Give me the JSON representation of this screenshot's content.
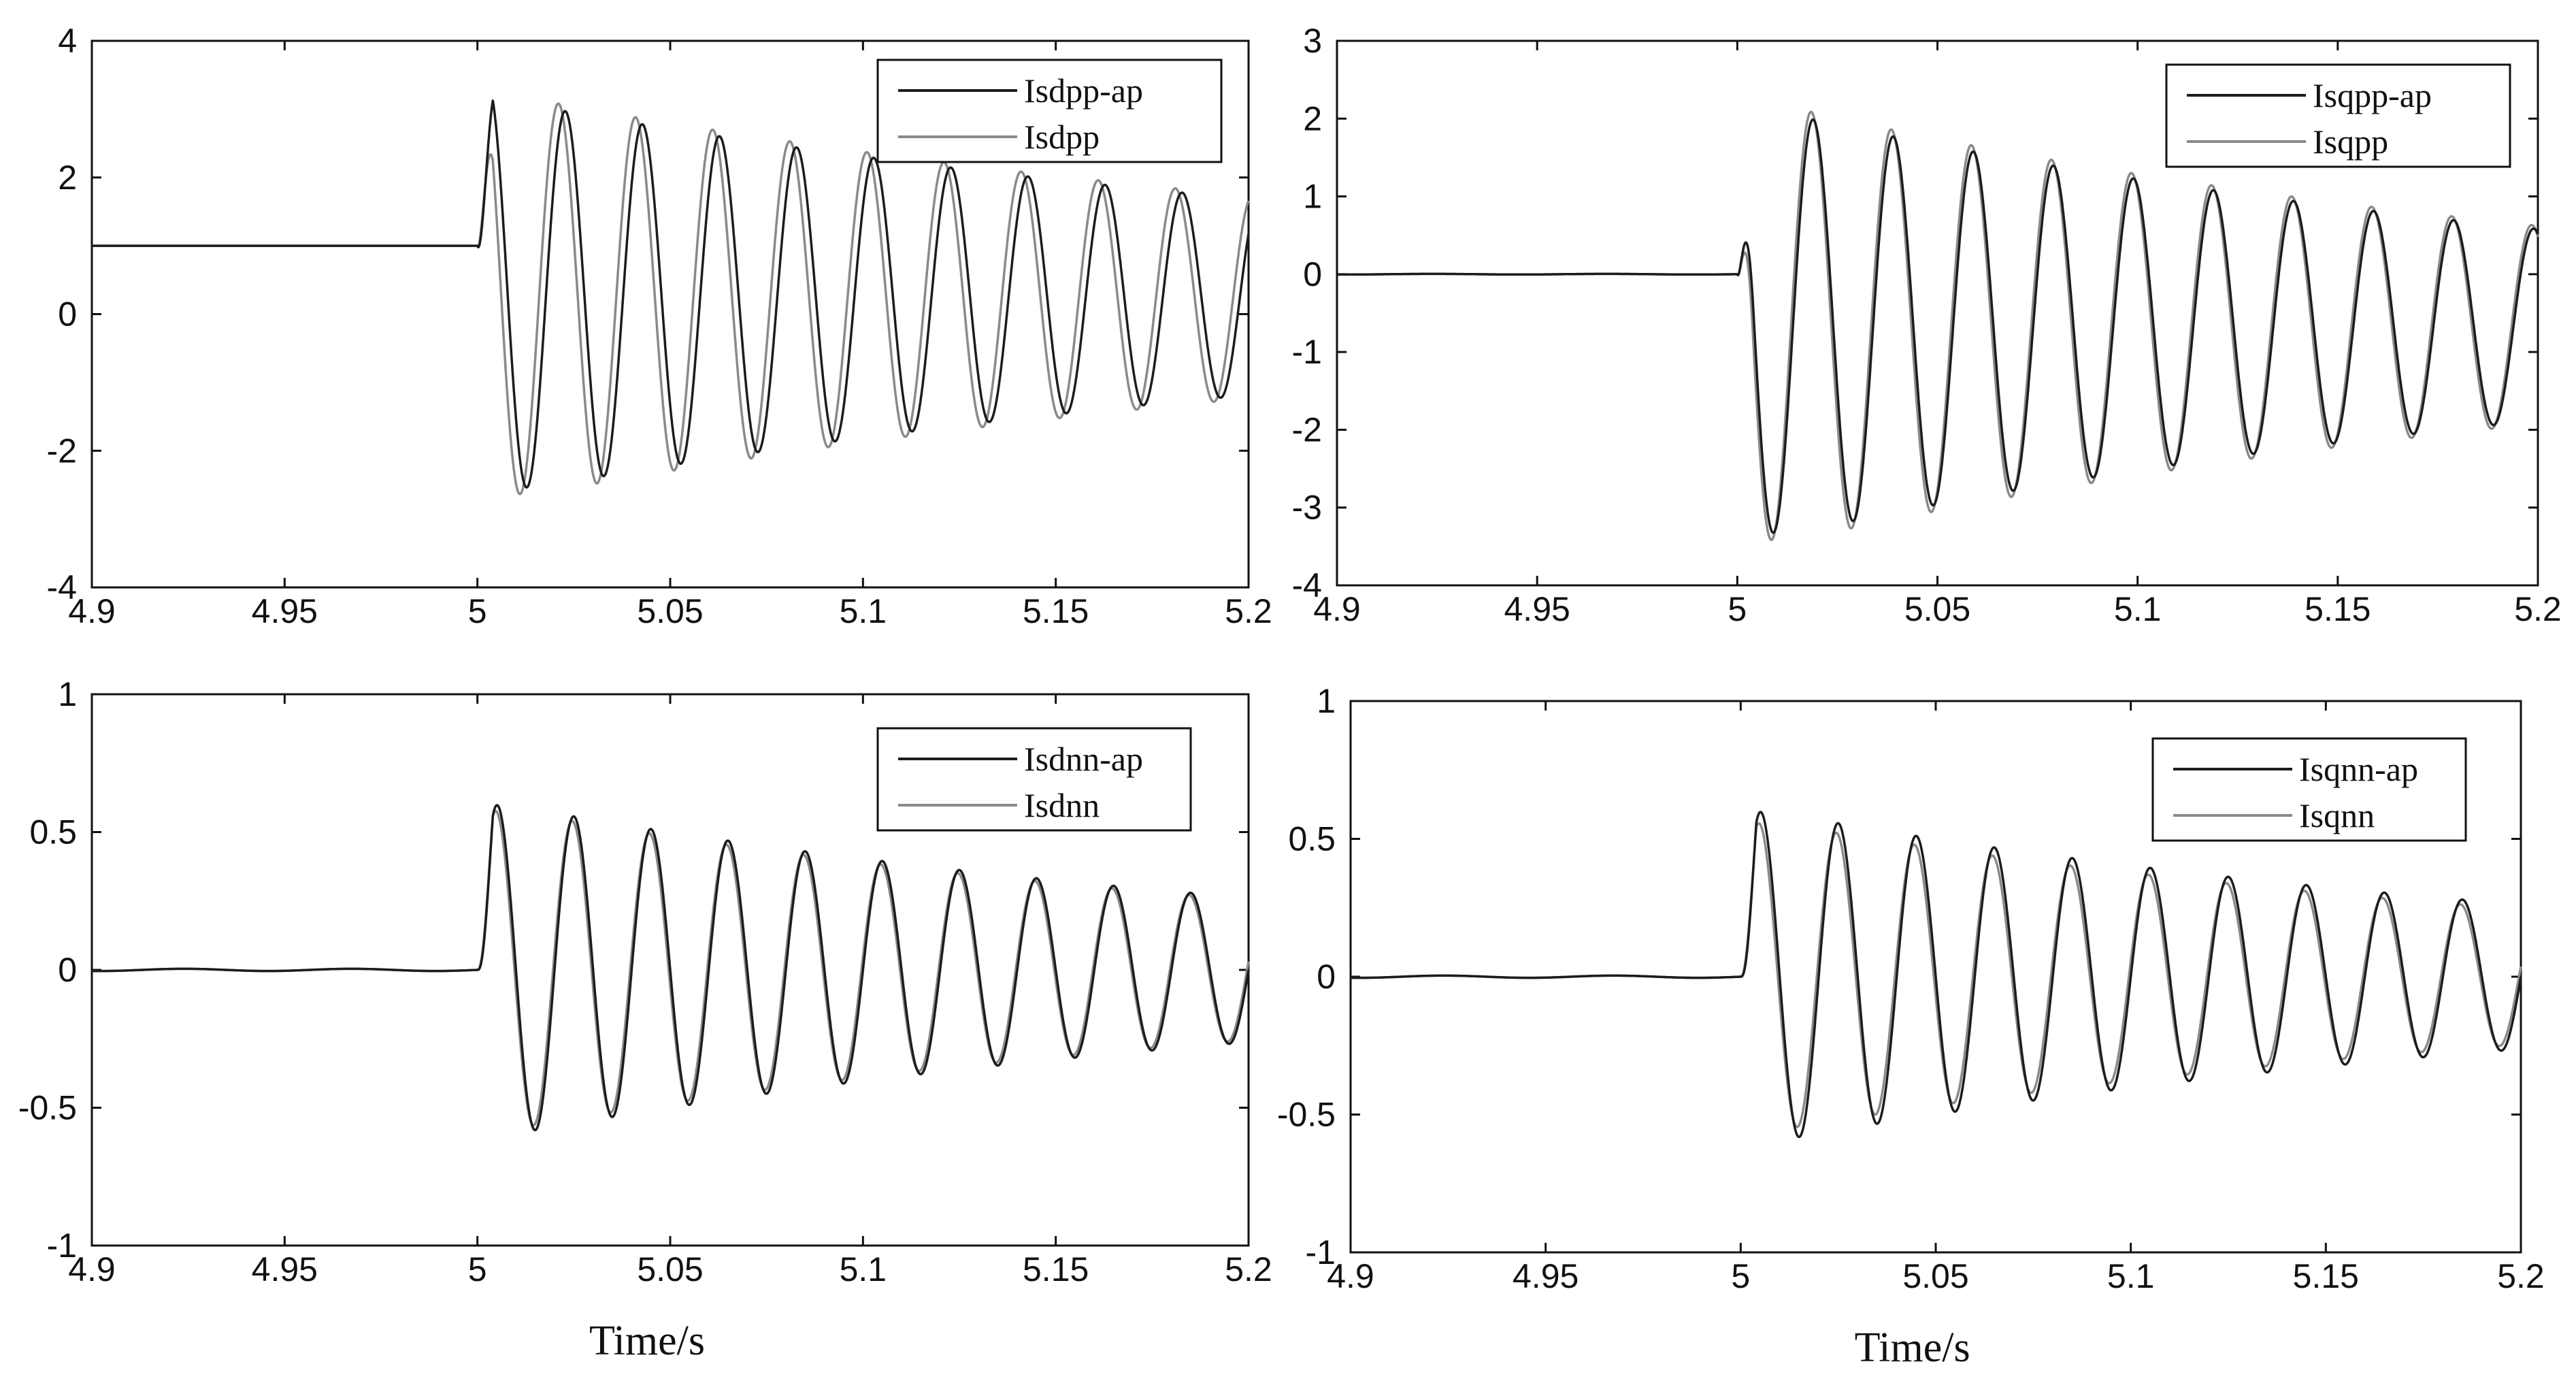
{
  "colors": {
    "background": "#ffffff",
    "axes": "#111111",
    "series_ap": "#1c1c1c",
    "series_ref": "#8a8a8a"
  },
  "chart_data": [
    {
      "type": "line",
      "xlim": [
        4.9,
        5.2
      ],
      "ylim": [
        -4,
        4
      ],
      "xticks": [
        "4.9",
        "4.95",
        "5",
        "5.05",
        "5.1",
        "5.15",
        "5.2"
      ],
      "yticks": [
        "4",
        "2",
        "0",
        "-2",
        "-4"
      ],
      "ytick_values": [
        4,
        2,
        0,
        -2,
        -4
      ],
      "xlabel": "",
      "ylabel": "",
      "title": "",
      "grid": false,
      "legend": "top-right",
      "fault_time": 5.0,
      "series": [
        {
          "name": "Isdpp-ap",
          "pre_value": 1.0,
          "offset": 0.25,
          "amp": 2.95,
          "decay": 3.6,
          "freq": 50,
          "phase": 0.7,
          "color": "#1c1c1c"
        },
        {
          "name": "Isdpp",
          "pre_value": 1.0,
          "offset": 0.25,
          "amp": 3.05,
          "decay": 3.6,
          "freq": 50,
          "phase": 1.25,
          "color": "#8a8a8a"
        }
      ]
    },
    {
      "type": "line",
      "xlim": [
        4.9,
        5.2
      ],
      "ylim": [
        -4,
        3
      ],
      "xticks": [
        "4.9",
        "4.95",
        "5",
        "5.05",
        "5.1",
        "5.15",
        "5.2"
      ],
      "yticks": [
        "3",
        "2",
        "1",
        "0",
        "-1",
        "-2",
        "-3",
        "-4"
      ],
      "ytick_values": [
        3,
        2,
        1,
        0,
        -1,
        -2,
        -3,
        -4
      ],
      "xlabel": "",
      "ylabel": "",
      "title": "",
      "grid": false,
      "legend": "top-right",
      "fault_time": 5.0,
      "series": [
        {
          "name": "Isqpp-ap",
          "pre_value": 0.0,
          "offset": -0.65,
          "amp": 2.85,
          "decay": 4.2,
          "freq": 50,
          "phase": 1.9,
          "color": "#1c1c1c"
        },
        {
          "name": "Isqpp",
          "pre_value": 0.0,
          "offset": -0.65,
          "amp": 2.95,
          "decay": 4.2,
          "freq": 50,
          "phase": 2.05,
          "color": "#8a8a8a"
        }
      ]
    },
    {
      "type": "line",
      "xlim": [
        4.9,
        5.2
      ],
      "ylim": [
        -1,
        1
      ],
      "xticks": [
        "4.9",
        "4.95",
        "5",
        "5.05",
        "5.1",
        "5.15",
        "5.2"
      ],
      "yticks": [
        "1",
        "0.5",
        "0",
        "-0.5",
        "-1"
      ],
      "ytick_values": [
        1,
        0.5,
        0,
        -0.5,
        -1
      ],
      "xlabel": "Time/s",
      "ylabel": "",
      "title": "",
      "grid": false,
      "legend": "top-right",
      "fault_time": 5.0,
      "series": [
        {
          "name": "Isdnn-ap",
          "pre_value": 0.0,
          "offset": 0.0,
          "amp": 0.62,
          "decay": 4.3,
          "freq": 50,
          "phase": 0.0,
          "color": "#1c1c1c"
        },
        {
          "name": "Isdnn",
          "pre_value": 0.0,
          "offset": 0.0,
          "amp": 0.6,
          "decay": 4.3,
          "freq": 50,
          "phase": 0.12,
          "color": "#8a8a8a"
        }
      ]
    },
    {
      "type": "line",
      "xlim": [
        4.9,
        5.2
      ],
      "ylim": [
        -1,
        1
      ],
      "xticks": [
        "4.9",
        "4.95",
        "5",
        "5.05",
        "5.1",
        "5.15",
        "5.2"
      ],
      "yticks": [
        "1",
        "0.5",
        "0",
        "-0.5",
        "-1"
      ],
      "ytick_values": [
        1,
        0.5,
        0,
        -0.5,
        -1
      ],
      "xlabel": "Time/s",
      "ylabel": "",
      "title": "",
      "grid": false,
      "legend": "top-right",
      "fault_time": 5.0,
      "series": [
        {
          "name": "Isqnn-ap",
          "pre_value": 0.0,
          "offset": 0.0,
          "amp": 0.62,
          "decay": 4.3,
          "freq": 50,
          "phase": 0.0,
          "color": "#1c1c1c"
        },
        {
          "name": "Isqnn",
          "pre_value": 0.0,
          "offset": 0.0,
          "amp": 0.58,
          "decay": 4.3,
          "freq": 50,
          "phase": 0.15,
          "color": "#8a8a8a"
        }
      ]
    }
  ]
}
